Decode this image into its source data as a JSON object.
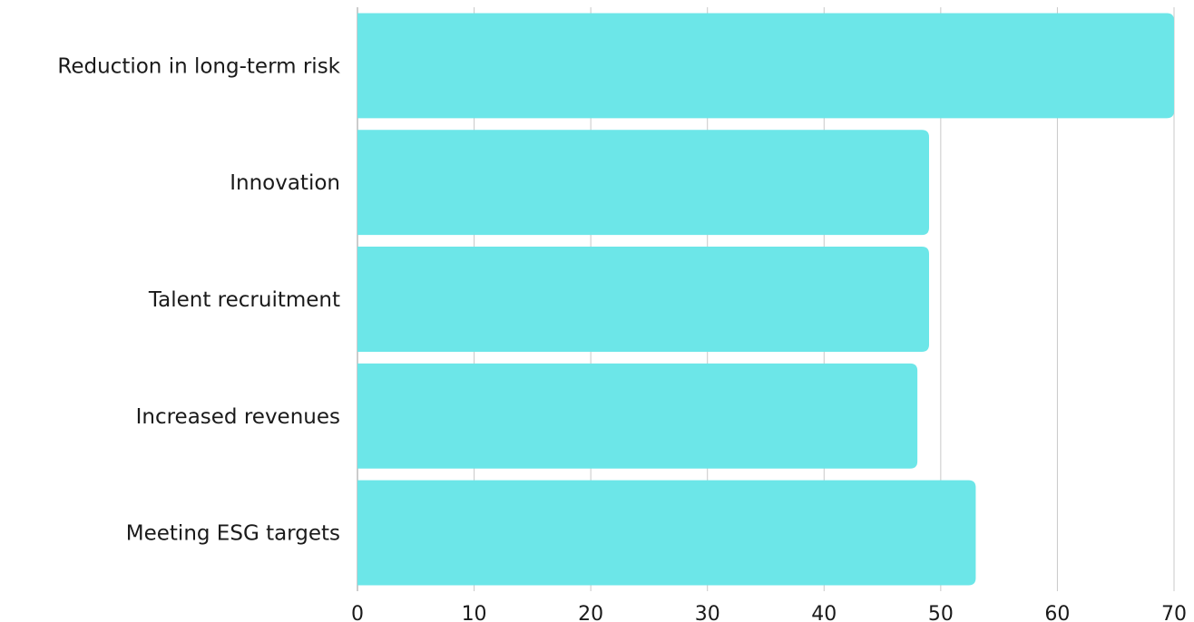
{
  "chart_data": {
    "type": "bar",
    "orientation": "horizontal",
    "title": "",
    "xlabel": "",
    "ylabel": "",
    "categories": [
      "Reduction in long-term risk",
      "Innovation",
      "Talent recruitment",
      "Increased revenues",
      "Meeting ESG targets"
    ],
    "values": [
      70,
      49,
      49,
      48,
      53
    ],
    "xlim": [
      0,
      70
    ],
    "xticks": [
      "0",
      "10",
      "20",
      "30",
      "40",
      "50",
      "60",
      "70"
    ],
    "grid": true,
    "legend": "none",
    "bar_color": "#6ce6e8"
  }
}
